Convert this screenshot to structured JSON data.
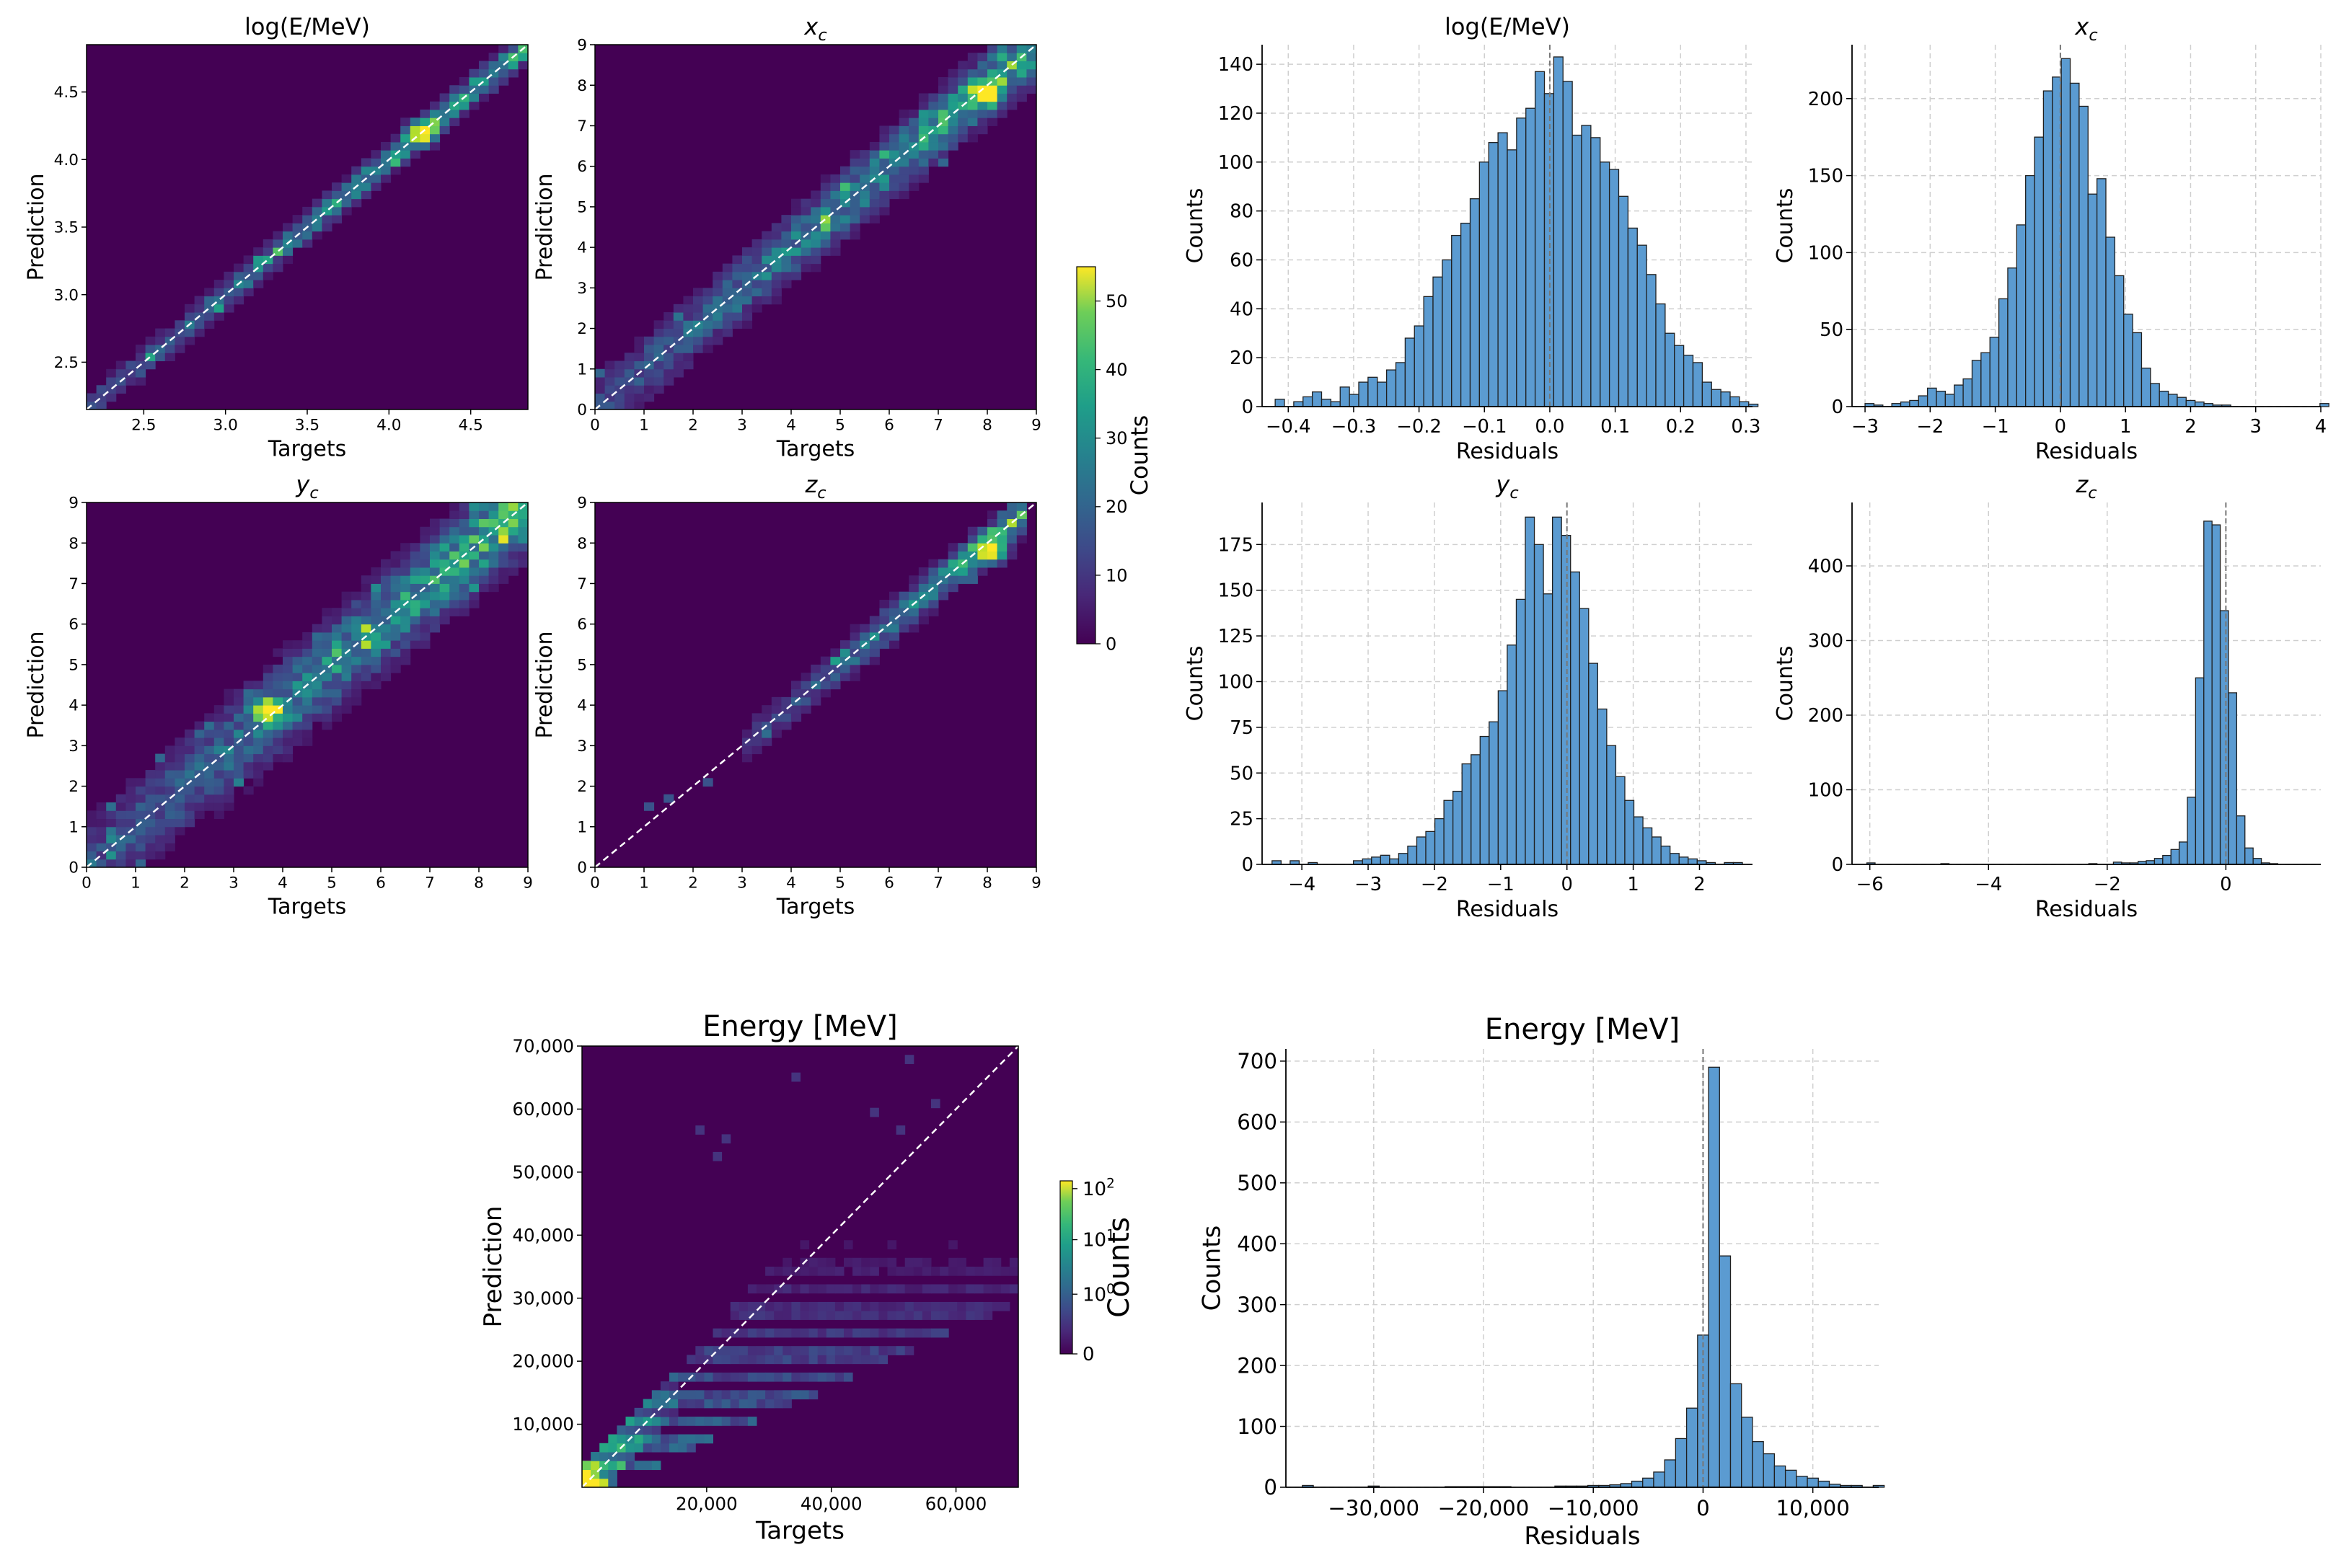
{
  "chart_data": [
    {
      "id": "h2d_logE",
      "type": "heatmap",
      "title": "log(E/MeV)",
      "xlabel": "Targets",
      "ylabel": "Prediction",
      "xlim": [
        2.15,
        4.85
      ],
      "ylim": [
        2.15,
        4.85
      ],
      "xticks": [
        "2.5",
        "3.0",
        "3.5",
        "4.0",
        "4.5"
      ],
      "yticks": [
        "2.5",
        "3.0",
        "3.5",
        "4.0",
        "4.5"
      ],
      "reference_line": "y = x",
      "density": {
        "kind": "diagonal",
        "spread": 0.07,
        "peak": [
          4.2,
          4.2
        ],
        "nbins": 45
      }
    },
    {
      "id": "h2d_xc",
      "type": "heatmap",
      "title": "x",
      "title_sub": "c",
      "xlabel": "Targets",
      "ylabel": "Prediction",
      "xlim": [
        0,
        9
      ],
      "ylim": [
        0,
        9
      ],
      "xticks": [
        "0",
        "1",
        "2",
        "3",
        "4",
        "5",
        "6",
        "7",
        "8",
        "9"
      ],
      "yticks": [
        "0",
        "1",
        "2",
        "3",
        "4",
        "5",
        "6",
        "7",
        "8",
        "9"
      ],
      "reference_line": "y = x",
      "density": {
        "kind": "diagonal",
        "spread": 0.5,
        "peak": [
          8.0,
          7.8
        ],
        "nbins": 45
      }
    },
    {
      "id": "h2d_yc",
      "type": "heatmap",
      "title": "y",
      "title_sub": "c",
      "xlabel": "Targets",
      "ylabel": "Prediction",
      "xlim": [
        0,
        9
      ],
      "ylim": [
        0,
        9
      ],
      "xticks": [
        "0",
        "1",
        "2",
        "3",
        "4",
        "5",
        "6",
        "7",
        "8",
        "9"
      ],
      "yticks": [
        "0",
        "1",
        "2",
        "3",
        "4",
        "5",
        "6",
        "7",
        "8",
        "9"
      ],
      "reference_line": "y = x",
      "density": {
        "kind": "diagonal",
        "spread": 0.7,
        "peak": [
          3.7,
          3.9
        ],
        "nbins": 45
      }
    },
    {
      "id": "h2d_zc",
      "type": "heatmap",
      "title": "z",
      "title_sub": "c",
      "xlabel": "Targets",
      "ylabel": "Prediction",
      "xlim": [
        0,
        9
      ],
      "ylim": [
        0,
        9
      ],
      "xticks": [
        "0",
        "1",
        "2",
        "3",
        "4",
        "5",
        "6",
        "7",
        "8",
        "9"
      ],
      "yticks": [
        "0",
        "1",
        "2",
        "3",
        "4",
        "5",
        "6",
        "7",
        "8",
        "9"
      ],
      "reference_line": "y = x",
      "density": {
        "kind": "diagonal",
        "spread": 0.3,
        "range": [
          3.5,
          8.5
        ],
        "peak": [
          8.1,
          7.8
        ],
        "nbins": 45
      }
    },
    {
      "id": "colorbar_linear",
      "type": "colorbar",
      "label": "Counts",
      "range": [
        0,
        55
      ],
      "ticks": [
        "0",
        "10",
        "20",
        "30",
        "40",
        "50"
      ],
      "colormap": "viridis"
    },
    {
      "id": "hist_logE",
      "type": "bar",
      "title": "log(E/MeV)",
      "xlabel": "Residuals",
      "ylabel": "Counts",
      "xlim": [
        -0.44,
        0.31
      ],
      "ylim": [
        0,
        148
      ],
      "xticks": [
        -0.4,
        -0.3,
        -0.2,
        -0.1,
        0.0,
        0.1,
        0.2,
        0.3
      ],
      "xtick_labels": [
        "−0.4",
        "−0.3",
        "−0.2",
        "−0.1",
        "0.0",
        "0.1",
        "0.2",
        "0.3"
      ],
      "yticks": [
        0,
        20,
        40,
        60,
        80,
        100,
        120,
        140
      ],
      "vline": 0,
      "bin_start": -0.42,
      "bin_width": 0.0142,
      "values": [
        3,
        0,
        2,
        4,
        6,
        3,
        2,
        8,
        5,
        10,
        12,
        10,
        15,
        18,
        28,
        33,
        45,
        53,
        60,
        70,
        75,
        85,
        100,
        108,
        112,
        105,
        118,
        122,
        137,
        128,
        143,
        133,
        111,
        115,
        110,
        100,
        97,
        86,
        73,
        66,
        54,
        42,
        30,
        25,
        21,
        18,
        10,
        7,
        6,
        4,
        2,
        1
      ]
    },
    {
      "id": "hist_xc",
      "type": "bar",
      "title": "x",
      "title_sub": "c",
      "xlabel": "Residuals",
      "ylabel": "Counts",
      "xlim": [
        -3.2,
        4.0
      ],
      "ylim": [
        0,
        235
      ],
      "xticks": [
        -3,
        -2,
        -1,
        0,
        1,
        2,
        3,
        4
      ],
      "xtick_labels": [
        "−3",
        "−2",
        "−1",
        "0",
        "1",
        "2",
        "3",
        "4"
      ],
      "yticks": [
        0,
        50,
        100,
        150,
        200
      ],
      "vline": 0,
      "bin_start": -3.0,
      "bin_width": 0.137,
      "values": [
        2,
        1,
        0,
        2,
        3,
        4,
        7,
        12,
        10,
        8,
        14,
        18,
        30,
        35,
        45,
        70,
        90,
        118,
        150,
        175,
        205,
        214,
        226,
        210,
        195,
        138,
        148,
        110,
        85,
        60,
        48,
        25,
        15,
        10,
        8,
        6,
        4,
        3,
        2,
        1,
        1,
        0,
        0,
        0,
        0,
        0,
        0,
        0,
        0,
        0,
        0,
        2
      ]
    },
    {
      "id": "hist_yc",
      "type": "bar",
      "title": "y",
      "title_sub": "c",
      "xlabel": "Residuals",
      "ylabel": "Counts",
      "xlim": [
        -4.6,
        2.8
      ],
      "ylim": [
        0,
        198
      ],
      "xticks": [
        -4,
        -3,
        -2,
        -1,
        0,
        1,
        2
      ],
      "xtick_labels": [
        "−4",
        "−3",
        "−2",
        "−1",
        "0",
        "1",
        "2"
      ],
      "yticks": [
        0,
        25,
        50,
        75,
        100,
        125,
        150,
        175
      ],
      "vline": 0,
      "bin_start": -4.45,
      "bin_width": 0.1365,
      "values": [
        2,
        0,
        2,
        0,
        1,
        0,
        0,
        0,
        0,
        2,
        3,
        4,
        5,
        3,
        6,
        10,
        15,
        18,
        25,
        35,
        40,
        55,
        60,
        70,
        78,
        95,
        120,
        145,
        190,
        175,
        148,
        190,
        180,
        160,
        140,
        110,
        85,
        65,
        48,
        35,
        26,
        20,
        15,
        10,
        6,
        4,
        3,
        2,
        1,
        0,
        1,
        1
      ]
    },
    {
      "id": "hist_zc",
      "type": "bar",
      "title": "z",
      "title_sub": "c",
      "xlabel": "Residuals",
      "ylabel": "Counts",
      "xlim": [
        -6.3,
        1.6
      ],
      "ylim": [
        0,
        485
      ],
      "xticks": [
        -6,
        -4,
        -2,
        0
      ],
      "xtick_labels": [
        "−6",
        "−4",
        "−2",
        "0"
      ],
      "yticks": [
        0,
        100,
        200,
        300,
        400
      ],
      "vline": 0,
      "bin_start": -6.05,
      "bin_width": 0.1385,
      "values": [
        2,
        0,
        0,
        0,
        0,
        0,
        0,
        0,
        0,
        1,
        0,
        0,
        0,
        0,
        0,
        0,
        0,
        0,
        0,
        0,
        0,
        0,
        0,
        0,
        0,
        0,
        0,
        1,
        0,
        0,
        3,
        2,
        2,
        4,
        5,
        8,
        12,
        20,
        30,
        90,
        250,
        460,
        455,
        340,
        230,
        65,
        22,
        8,
        2,
        1,
        0,
        0,
        0
      ]
    },
    {
      "id": "h2d_energy",
      "type": "heatmap",
      "title": "Energy [MeV]",
      "xlabel": "Targets",
      "ylabel": "Prediction",
      "xlim": [
        0,
        70000
      ],
      "ylim": [
        0,
        70000
      ],
      "xticks": [
        20000,
        40000,
        60000
      ],
      "xtick_labels": [
        "20,000",
        "40,000",
        "60,000"
      ],
      "yticks": [
        10000,
        20000,
        30000,
        40000,
        50000,
        60000,
        70000
      ],
      "ytick_labels": [
        "10,000",
        "20,000",
        "30,000",
        "40,000",
        "50,000",
        "60,000",
        "70,000"
      ],
      "reference_line": "y = x",
      "density": {
        "kind": "banded",
        "peak": [
          1000,
          1000
        ],
        "nbins": 50
      }
    },
    {
      "id": "colorbar_log",
      "type": "colorbar",
      "label": "Counts",
      "scale": "symlog",
      "range": [
        0,
        200
      ],
      "colormap": "viridis",
      "ticks": [
        {
          "base": "10",
          "exp": "2"
        },
        {
          "base": "10",
          "exp": "1"
        },
        {
          "base": "10",
          "exp": "0"
        },
        {
          "base": "0",
          "exp": ""
        }
      ]
    },
    {
      "id": "hist_energy",
      "type": "bar",
      "title": "Energy [MeV]",
      "xlabel": "Residuals",
      "ylabel": "Counts",
      "xlim": [
        -38000,
        16000
      ],
      "ylim": [
        0,
        720
      ],
      "xticks": [
        -30000,
        -20000,
        -10000,
        0,
        10000
      ],
      "xtick_labels": [
        "−30,000",
        "−20,000",
        "−10,000",
        "0",
        "10,000"
      ],
      "yticks": [
        0,
        100,
        200,
        300,
        400,
        500,
        600,
        700
      ],
      "vline": 0,
      "bin_start": -36500,
      "bin_width": 1000,
      "values": [
        3,
        0,
        0,
        0,
        0,
        0,
        2,
        0,
        0,
        0,
        0,
        0,
        0,
        1,
        1,
        1,
        1,
        1,
        1,
        0,
        0,
        0,
        0,
        2,
        2,
        2,
        3,
        3,
        4,
        6,
        10,
        15,
        25,
        45,
        80,
        130,
        250,
        690,
        380,
        170,
        115,
        75,
        55,
        35,
        28,
        18,
        15,
        10,
        5,
        3,
        3,
        0,
        3
      ]
    }
  ]
}
